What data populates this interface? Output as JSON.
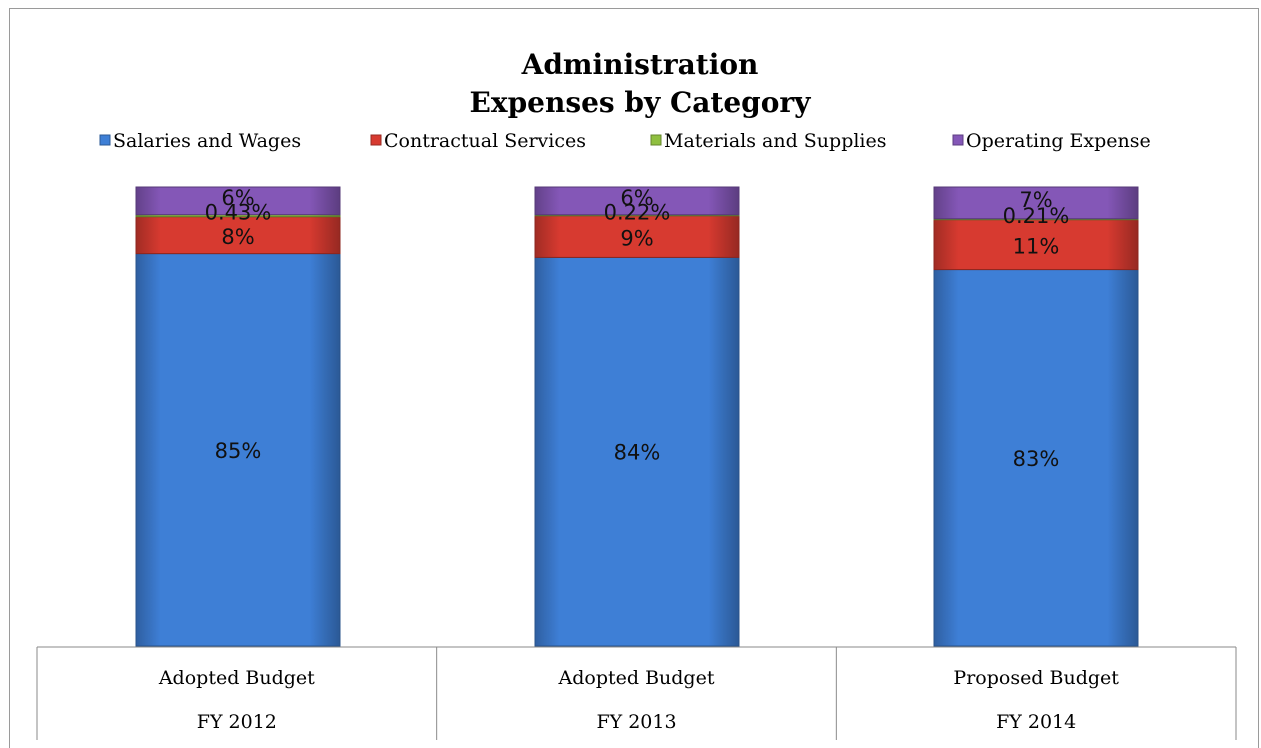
{
  "chart_data": {
    "type": "bar",
    "stacked": true,
    "title": [
      "Administration",
      "Expenses by Category"
    ],
    "categories": [
      [
        "Adopted Budget",
        "FY 2012"
      ],
      [
        "Adopted Budget",
        "FY 2013"
      ],
      [
        "Proposed Budget",
        "FY 2014"
      ]
    ],
    "series": [
      {
        "name": "Salaries and Wages",
        "color": "#3e7fd6",
        "values": [
          85,
          84,
          83
        ],
        "labels": [
          "85%",
          "84%",
          "83%"
        ]
      },
      {
        "name": "Contractual Services",
        "color": "#d73a30",
        "values": [
          8,
          9,
          11
        ],
        "labels": [
          "8%",
          "9%",
          "11%"
        ]
      },
      {
        "name": "Materials and Supplies",
        "color": "#8fbf3f",
        "values": [
          0.43,
          0.22,
          0.21
        ],
        "labels": [
          "0.43%",
          "0.22%",
          "0.21%"
        ]
      },
      {
        "name": "Operating Expense",
        "color": "#8457b7",
        "values": [
          6,
          6,
          7
        ],
        "labels": [
          "6%",
          "6%",
          "7%"
        ]
      }
    ],
    "legend_position": "top",
    "grid": false,
    "ylim": [
      0,
      100
    ]
  }
}
